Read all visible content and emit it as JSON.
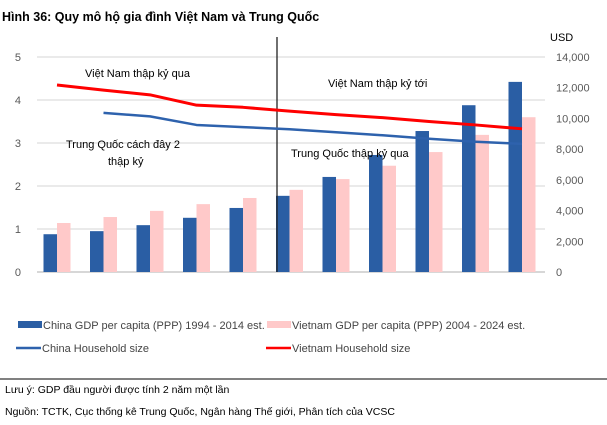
{
  "chart_data": {
    "type": "bar",
    "title": "Hình 36: Quy mô hộ gia đình Việt Nam và Trung Quốc",
    "left_axis": {
      "ylim": [
        0,
        5
      ],
      "ticks": [
        "0",
        "1",
        "2",
        "3",
        "4",
        "5"
      ]
    },
    "right_axis": {
      "label": "USD",
      "ylim": [
        0,
        14000
      ],
      "ticks": [
        "0",
        "2,000",
        "4,000",
        "6,000",
        "8,000",
        "10,000",
        "12,000",
        "14,000"
      ]
    },
    "grid": true,
    "legend_position": "bottom",
    "series": [
      {
        "name": "China GDP per capita (PPP) 1994 - 2014 est.",
        "type": "bar",
        "axis": "right",
        "color": "#2a5ea4",
        "values": [
          2460,
          2660,
          3050,
          3530,
          4170,
          4960,
          6190,
          7620,
          9180,
          10860,
          12380
        ]
      },
      {
        "name": "Vietnam GDP per capita (PPP) 2004 - 2024 est.",
        "type": "bar",
        "axis": "right",
        "color": "#ffc9c9",
        "values": [
          3190,
          3580,
          3980,
          4420,
          4820,
          5350,
          6050,
          6920,
          7810,
          8930,
          10080
        ]
      },
      {
        "name": "China Household size",
        "type": "line",
        "axis": "left",
        "color": "#2e62ad",
        "values": [
          null,
          3.7,
          3.62,
          3.42,
          3.37,
          3.32,
          3.25,
          3.18,
          3.1,
          3.03,
          2.98
        ]
      },
      {
        "name": "Vietnam Household size",
        "type": "line",
        "axis": "left",
        "color": "#ff0000",
        "values": [
          4.35,
          4.23,
          4.12,
          3.88,
          3.83,
          3.74,
          3.66,
          3.59,
          3.5,
          3.42,
          3.33
        ]
      }
    ],
    "annotations": {
      "vn_past": "Việt Nam thập kỷ qua",
      "vn_next": "Việt Nam thập kỷ tới",
      "cn_past_line1": "Trung Quốc cách đây 2",
      "cn_past_line2": "thập kỷ",
      "cn_decade": "Trung Quốc thập kỷ qua"
    }
  },
  "footer": {
    "note": "Lưu ý: GDP đầu người được tính 2 năm một lần",
    "source": "Nguồn: TCTK, Cục thống kê Trung Quốc, Ngân hàng Thế giới, Phân tích của VCSC"
  }
}
